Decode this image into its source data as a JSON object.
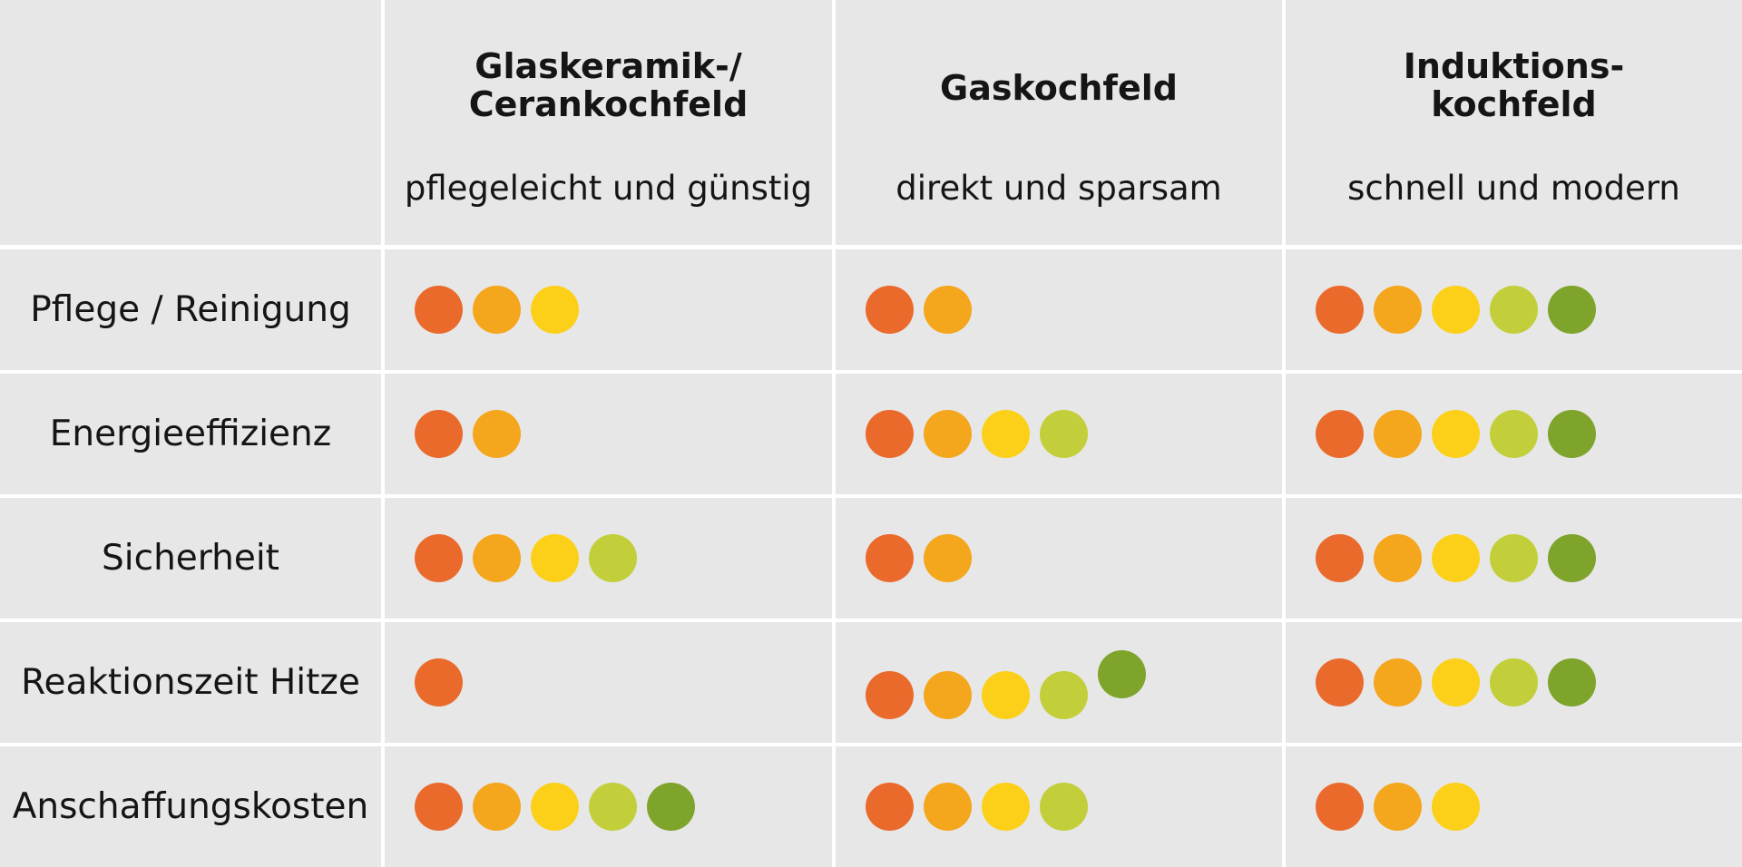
{
  "colors": {
    "background": "#e7e7e7",
    "grid": "#ffffff",
    "scale": [
      "#ea6a2c",
      "#f4a61c",
      "#fcd019",
      "#c2cf3a",
      "#7ea42b"
    ]
  },
  "chart_data": {
    "type": "table",
    "columns": [
      {
        "title_lines": [
          "Glaskeramik-/",
          "Cerankochfeld"
        ],
        "subtitle": "pflegeleicht und günstig"
      },
      {
        "title_lines": [
          "Gaskochfeld"
        ],
        "subtitle": "direkt und sparsam"
      },
      {
        "title_lines": [
          "Induktions-",
          "kochfeld"
        ],
        "subtitle": "schnell und modern"
      }
    ],
    "rows": [
      {
        "label": "Pflege / Reinigung",
        "ratings": [
          3,
          2,
          5
        ]
      },
      {
        "label": "Energieeffizienz",
        "ratings": [
          2,
          4,
          5
        ]
      },
      {
        "label": "Sicherheit",
        "ratings": [
          4,
          2,
          5
        ]
      },
      {
        "label": "Reaktionszeit Hitze",
        "ratings": [
          1,
          5,
          5
        ]
      },
      {
        "label": "Anschaffungskosten",
        "ratings": [
          5,
          4,
          3
        ]
      }
    ],
    "scale_max": 5
  }
}
